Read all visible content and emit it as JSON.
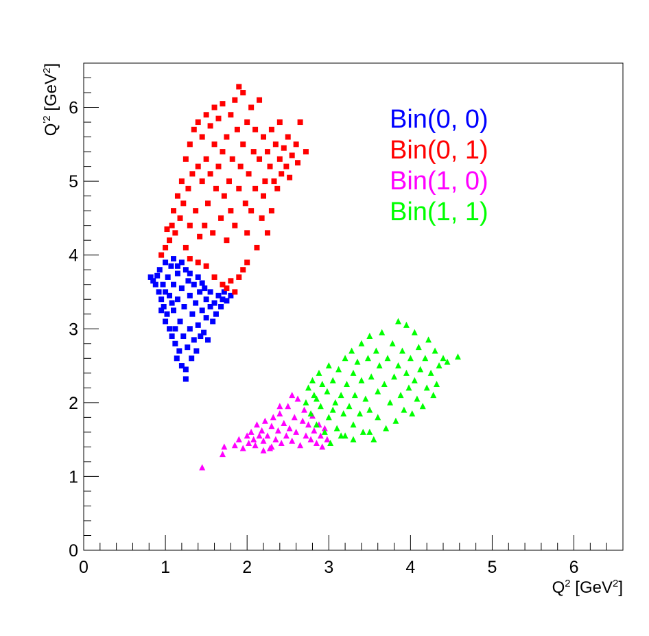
{
  "chart_data": {
    "type": "scatter",
    "title": "",
    "xlabel": {
      "base": "Q",
      "sup": "2",
      "unit_open": " [GeV",
      "unit_sup": "2",
      "unit_close": "]"
    },
    "ylabel": {
      "base": "Q",
      "sup": "'2",
      "unit_open": " [GeV",
      "unit_sup": "2",
      "unit_close": "]"
    },
    "xlim": [
      0,
      6.6
    ],
    "ylim": [
      0,
      6.6
    ],
    "x_ticks": [
      "0",
      "1",
      "2",
      "3",
      "4",
      "5",
      "6"
    ],
    "y_ticks": [
      "0",
      "1",
      "2",
      "3",
      "4",
      "5",
      "6"
    ],
    "legend_position": "top-right",
    "series": [
      {
        "name": "Bin(0, 0)",
        "color": "#0000ff",
        "marker": "square",
        "points": [
          [
            0.82,
            3.7
          ],
          [
            0.85,
            3.65
          ],
          [
            0.88,
            3.6
          ],
          [
            0.9,
            3.72
          ],
          [
            0.92,
            3.5
          ],
          [
            0.93,
            3.8
          ],
          [
            0.95,
            3.4
          ],
          [
            0.97,
            3.6
          ],
          [
            0.98,
            3.3
          ],
          [
            1.0,
            3.5
          ],
          [
            1.0,
            3.9
          ],
          [
            1.02,
            3.2
          ],
          [
            1.03,
            3.7
          ],
          [
            1.05,
            3.0
          ],
          [
            1.05,
            3.45
          ],
          [
            1.07,
            3.85
          ],
          [
            1.08,
            2.9
          ],
          [
            1.1,
            3.25
          ],
          [
            1.1,
            3.6
          ],
          [
            1.12,
            2.8
          ],
          [
            1.12,
            3.0
          ],
          [
            1.14,
            2.6
          ],
          [
            1.15,
            3.4
          ],
          [
            1.15,
            3.75
          ],
          [
            1.17,
            2.7
          ],
          [
            1.18,
            3.1
          ],
          [
            1.2,
            2.5
          ],
          [
            1.2,
            3.55
          ],
          [
            1.22,
            2.9
          ],
          [
            1.23,
            3.3
          ],
          [
            1.25,
            2.32
          ],
          [
            1.25,
            2.45
          ],
          [
            1.27,
            2.75
          ],
          [
            1.28,
            3.65
          ],
          [
            1.3,
            3.0
          ],
          [
            1.3,
            3.45
          ],
          [
            1.32,
            2.6
          ],
          [
            1.33,
            3.2
          ],
          [
            1.35,
            2.85
          ],
          [
            1.35,
            3.6
          ],
          [
            1.37,
            3.35
          ],
          [
            1.38,
            2.7
          ],
          [
            1.4,
            3.05
          ],
          [
            1.42,
            3.5
          ],
          [
            1.43,
            2.9
          ],
          [
            1.45,
            3.25
          ],
          [
            1.47,
            2.95
          ],
          [
            1.48,
            3.55
          ],
          [
            1.5,
            3.15
          ],
          [
            1.5,
            3.4
          ],
          [
            1.52,
            2.85
          ],
          [
            1.55,
            3.3
          ],
          [
            1.55,
            3.5
          ],
          [
            1.58,
            3.1
          ],
          [
            1.6,
            3.35
          ],
          [
            1.62,
            3.2
          ],
          [
            1.65,
            3.45
          ],
          [
            1.68,
            3.3
          ],
          [
            1.7,
            3.4
          ],
          [
            1.72,
            3.5
          ],
          [
            1.75,
            3.38
          ],
          [
            1.8,
            3.45
          ],
          [
            1.1,
            3.95
          ],
          [
            1.15,
            3.85
          ],
          [
            1.2,
            3.9
          ],
          [
            1.25,
            3.8
          ],
          [
            1.3,
            3.75
          ],
          [
            1.4,
            3.7
          ],
          [
            1.45,
            3.62
          ],
          [
            1.0,
            3.1
          ],
          [
            0.95,
            3.25
          ],
          [
            1.08,
            3.35
          ]
        ]
      },
      {
        "name": "Bin(0, 1)",
        "color": "#ff0000",
        "marker": "square",
        "points": [
          [
            0.95,
            4.0
          ],
          [
            1.0,
            4.1
          ],
          [
            1.02,
            4.35
          ],
          [
            1.05,
            4.2
          ],
          [
            1.08,
            4.4
          ],
          [
            1.1,
            4.6
          ],
          [
            1.12,
            4.3
          ],
          [
            1.15,
            4.8
          ],
          [
            1.18,
            4.5
          ],
          [
            1.2,
            5.0
          ],
          [
            1.22,
            4.7
          ],
          [
            1.25,
            5.3
          ],
          [
            1.25,
            4.1
          ],
          [
            1.28,
            4.9
          ],
          [
            1.3,
            5.5
          ],
          [
            1.3,
            4.4
          ],
          [
            1.33,
            5.1
          ],
          [
            1.35,
            5.7
          ],
          [
            1.37,
            4.6
          ],
          [
            1.4,
            5.2
          ],
          [
            1.4,
            5.8
          ],
          [
            1.42,
            4.25
          ],
          [
            1.45,
            5.0
          ],
          [
            1.45,
            5.6
          ],
          [
            1.48,
            4.4
          ],
          [
            1.5,
            5.3
          ],
          [
            1.5,
            5.9
          ],
          [
            1.52,
            4.7
          ],
          [
            1.55,
            5.1
          ],
          [
            1.55,
            5.75
          ],
          [
            1.58,
            4.3
          ],
          [
            1.6,
            5.5
          ],
          [
            1.6,
            6.0
          ],
          [
            1.62,
            4.9
          ],
          [
            1.65,
            5.2
          ],
          [
            1.65,
            5.85
          ],
          [
            1.68,
            4.5
          ],
          [
            1.7,
            5.4
          ],
          [
            1.7,
            6.05
          ],
          [
            1.72,
            4.8
          ],
          [
            1.75,
            5.6
          ],
          [
            1.75,
            4.2
          ],
          [
            1.78,
            5.0
          ],
          [
            1.8,
            5.9
          ],
          [
            1.8,
            4.6
          ],
          [
            1.82,
            5.3
          ],
          [
            1.85,
            6.1
          ],
          [
            1.85,
            4.4
          ],
          [
            1.88,
            5.7
          ],
          [
            1.9,
            4.9
          ],
          [
            1.9,
            6.28
          ],
          [
            1.92,
            5.2
          ],
          [
            1.95,
            5.5
          ],
          [
            1.95,
            6.2
          ],
          [
            1.98,
            4.7
          ],
          [
            2.0,
            5.8
          ],
          [
            2.0,
            4.3
          ],
          [
            2.02,
            5.1
          ],
          [
            2.05,
            6.0
          ],
          [
            2.05,
            4.6
          ],
          [
            2.08,
            5.4
          ],
          [
            2.1,
            4.9
          ],
          [
            2.1,
            5.7
          ],
          [
            2.12,
            4.1
          ],
          [
            2.15,
            5.3
          ],
          [
            2.15,
            6.1
          ],
          [
            2.18,
            4.5
          ],
          [
            2.2,
            5.6
          ],
          [
            2.2,
            4.8
          ],
          [
            2.22,
            5.0
          ],
          [
            2.25,
            5.4
          ],
          [
            2.25,
            4.3
          ],
          [
            2.28,
            5.2
          ],
          [
            2.3,
            5.7
          ],
          [
            2.3,
            4.6
          ],
          [
            2.33,
            5.0
          ],
          [
            2.35,
            5.5
          ],
          [
            2.37,
            4.9
          ],
          [
            2.4,
            5.3
          ],
          [
            2.4,
            5.8
          ],
          [
            2.42,
            5.1
          ],
          [
            2.45,
            5.45
          ],
          [
            2.48,
            5.2
          ],
          [
            2.5,
            5.6
          ],
          [
            2.52,
            5.05
          ],
          [
            2.55,
            5.35
          ],
          [
            2.6,
            5.5
          ],
          [
            2.62,
            5.25
          ],
          [
            2.65,
            5.8
          ],
          [
            2.72,
            5.4
          ],
          [
            1.7,
            3.6
          ],
          [
            1.75,
            3.55
          ],
          [
            1.8,
            3.65
          ],
          [
            1.85,
            3.5
          ],
          [
            1.9,
            3.7
          ],
          [
            1.95,
            3.8
          ],
          [
            2.0,
            3.9
          ],
          [
            1.6,
            3.7
          ],
          [
            1.5,
            3.85
          ],
          [
            1.4,
            3.9
          ],
          [
            1.3,
            3.95
          ]
        ]
      },
      {
        "name": "Bin(1, 0)",
        "color": "#ff00ff",
        "marker": "triangle",
        "points": [
          [
            1.45,
            1.12
          ],
          [
            1.7,
            1.3
          ],
          [
            1.72,
            1.4
          ],
          [
            1.85,
            1.42
          ],
          [
            1.9,
            1.5
          ],
          [
            1.95,
            1.38
          ],
          [
            2.0,
            1.55
          ],
          [
            2.02,
            1.45
          ],
          [
            2.05,
            1.6
          ],
          [
            2.08,
            1.5
          ],
          [
            2.1,
            1.42
          ],
          [
            2.12,
            1.7
          ],
          [
            2.15,
            1.55
          ],
          [
            2.18,
            1.62
          ],
          [
            2.2,
            1.48
          ],
          [
            2.22,
            1.75
          ],
          [
            2.25,
            1.55
          ],
          [
            2.28,
            1.38
          ],
          [
            2.3,
            1.68
          ],
          [
            2.32,
            1.8
          ],
          [
            2.35,
            1.5
          ],
          [
            2.38,
            1.62
          ],
          [
            2.4,
            1.85
          ],
          [
            2.42,
            1.45
          ],
          [
            2.45,
            1.72
          ],
          [
            2.48,
            1.55
          ],
          [
            2.5,
            1.95
          ],
          [
            2.52,
            1.65
          ],
          [
            2.55,
            1.48
          ],
          [
            2.58,
            1.8
          ],
          [
            2.6,
            1.6
          ],
          [
            2.62,
            2.05
          ],
          [
            2.65,
            1.42
          ],
          [
            2.68,
            1.75
          ],
          [
            2.7,
            1.9
          ],
          [
            2.72,
            1.55
          ],
          [
            2.75,
            1.7
          ],
          [
            2.78,
            1.5
          ],
          [
            2.8,
            1.82
          ],
          [
            2.82,
            1.62
          ],
          [
            2.85,
            1.45
          ],
          [
            2.88,
            1.7
          ],
          [
            2.9,
            1.55
          ],
          [
            2.92,
            1.4
          ],
          [
            2.95,
            1.65
          ],
          [
            2.98,
            1.5
          ],
          [
            2.55,
            2.1
          ],
          [
            2.4,
            1.95
          ],
          [
            2.3,
            1.4
          ],
          [
            2.2,
            1.35
          ]
        ]
      },
      {
        "name": "Bin(1, 1)",
        "color": "#00ff00",
        "marker": "triangle",
        "points": [
          [
            2.72,
            2.0
          ],
          [
            2.75,
            2.2
          ],
          [
            2.78,
            1.85
          ],
          [
            2.8,
            2.3
          ],
          [
            2.82,
            2.1
          ],
          [
            2.85,
            1.7
          ],
          [
            2.88,
            2.4
          ],
          [
            2.9,
            1.95
          ],
          [
            2.92,
            2.25
          ],
          [
            2.95,
            1.6
          ],
          [
            2.98,
            2.15
          ],
          [
            3.0,
            2.5
          ],
          [
            3.0,
            1.8
          ],
          [
            3.02,
            1.45
          ],
          [
            3.05,
            2.3
          ],
          [
            3.08,
            2.0
          ],
          [
            3.1,
            1.65
          ],
          [
            3.12,
            2.45
          ],
          [
            3.15,
            2.1
          ],
          [
            3.18,
            1.85
          ],
          [
            3.2,
            2.6
          ],
          [
            3.2,
            1.55
          ],
          [
            3.22,
            2.25
          ],
          [
            3.25,
            1.95
          ],
          [
            3.28,
            2.7
          ],
          [
            3.3,
            2.4
          ],
          [
            3.3,
            1.7
          ],
          [
            3.32,
            2.1
          ],
          [
            3.35,
            2.55
          ],
          [
            3.38,
            1.85
          ],
          [
            3.4,
            2.8
          ],
          [
            3.4,
            2.3
          ],
          [
            3.42,
            1.6
          ],
          [
            3.45,
            2.05
          ],
          [
            3.48,
            2.6
          ],
          [
            3.5,
            2.9
          ],
          [
            3.5,
            1.9
          ],
          [
            3.52,
            2.35
          ],
          [
            3.55,
            1.5
          ],
          [
            3.58,
            2.7
          ],
          [
            3.6,
            2.15
          ],
          [
            3.6,
            1.8
          ],
          [
            3.62,
            2.5
          ],
          [
            3.65,
            2.95
          ],
          [
            3.68,
            2.25
          ],
          [
            3.7,
            1.65
          ],
          [
            3.72,
            2.6
          ],
          [
            3.75,
            2.0
          ],
          [
            3.78,
            2.8
          ],
          [
            3.8,
            2.35
          ],
          [
            3.82,
            1.75
          ],
          [
            3.85,
            3.1
          ],
          [
            3.85,
            2.5
          ],
          [
            3.88,
            2.1
          ],
          [
            3.9,
            2.7
          ],
          [
            3.92,
            1.9
          ],
          [
            3.95,
            3.05
          ],
          [
            3.95,
            2.4
          ],
          [
            3.98,
            2.2
          ],
          [
            4.0,
            2.6
          ],
          [
            4.02,
            1.85
          ],
          [
            4.05,
            2.95
          ],
          [
            4.05,
            2.3
          ],
          [
            4.08,
            2.05
          ],
          [
            4.1,
            2.75
          ],
          [
            4.12,
            2.45
          ],
          [
            4.15,
            1.95
          ],
          [
            4.18,
            2.6
          ],
          [
            4.2,
            2.2
          ],
          [
            4.22,
            2.85
          ],
          [
            4.25,
            2.4
          ],
          [
            4.28,
            2.1
          ],
          [
            4.3,
            2.7
          ],
          [
            4.32,
            2.25
          ],
          [
            4.35,
            2.5
          ],
          [
            4.4,
            2.6
          ],
          [
            4.45,
            2.55
          ],
          [
            4.58,
            2.62
          ],
          [
            3.3,
            1.5
          ],
          [
            3.5,
            1.6
          ],
          [
            3.15,
            1.55
          ],
          [
            2.85,
            2.05
          ],
          [
            3.05,
            1.9
          ]
        ]
      }
    ]
  }
}
